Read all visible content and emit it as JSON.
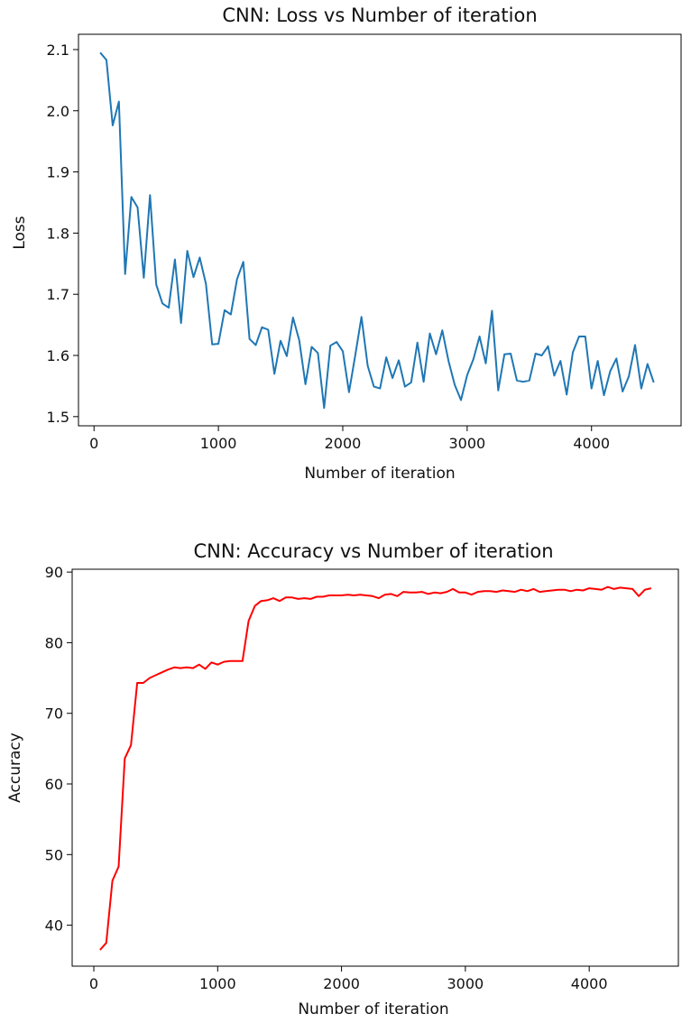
{
  "chart_data": [
    {
      "type": "line",
      "title": "CNN: Loss vs Number of iteration",
      "xlabel": "Number of iteration",
      "ylabel": "Loss",
      "xlim": [
        -125,
        4720
      ],
      "ylim": [
        1.485,
        2.125
      ],
      "xticks": [
        0,
        1000,
        2000,
        3000,
        4000
      ],
      "xtick_labels": [
        "0",
        "1000",
        "2000",
        "3000",
        "4000"
      ],
      "yticks": [
        1.5,
        1.6,
        1.7,
        1.8,
        1.9,
        2.0,
        2.1
      ],
      "ytick_labels": [
        "1.5",
        "1.6",
        "1.7",
        "1.8",
        "1.9",
        "2.0",
        "2.1"
      ],
      "grid": false,
      "line_color": "#1f77b4",
      "x": [
        50,
        100,
        150,
        200,
        250,
        300,
        350,
        400,
        450,
        500,
        550,
        600,
        650,
        700,
        750,
        800,
        850,
        900,
        950,
        1000,
        1050,
        1100,
        1150,
        1200,
        1250,
        1300,
        1350,
        1400,
        1450,
        1500,
        1550,
        1600,
        1650,
        1700,
        1750,
        1800,
        1850,
        1900,
        1950,
        2000,
        2050,
        2100,
        2150,
        2200,
        2250,
        2300,
        2350,
        2400,
        2450,
        2500,
        2550,
        2600,
        2650,
        2700,
        2750,
        2800,
        2850,
        2900,
        2950,
        3000,
        3050,
        3100,
        3150,
        3200,
        3250,
        3300,
        3350,
        3400,
        3450,
        3500,
        3550,
        3600,
        3650,
        3700,
        3750,
        3800,
        3850,
        3900,
        3950,
        4000,
        4050,
        4100,
        4150,
        4200,
        4250,
        4300,
        4350,
        4400,
        4450,
        4500
      ],
      "values": [
        2.095,
        2.083,
        1.976,
        2.015,
        1.733,
        1.859,
        1.842,
        1.727,
        1.862,
        1.716,
        1.685,
        1.678,
        1.757,
        1.653,
        1.771,
        1.728,
        1.76,
        1.717,
        1.618,
        1.619,
        1.674,
        1.667,
        1.725,
        1.753,
        1.627,
        1.617,
        1.646,
        1.642,
        1.57,
        1.624,
        1.599,
        1.662,
        1.625,
        1.553,
        1.614,
        1.604,
        1.514,
        1.616,
        1.622,
        1.607,
        1.54,
        1.6,
        1.663,
        1.583,
        1.549,
        1.546,
        1.597,
        1.563,
        1.592,
        1.549,
        1.556,
        1.621,
        1.557,
        1.636,
        1.602,
        1.641,
        1.591,
        1.552,
        1.527,
        1.568,
        1.594,
        1.631,
        1.587,
        1.673,
        1.543,
        1.602,
        1.603,
        1.559,
        1.557,
        1.559,
        1.603,
        1.6,
        1.615,
        1.567,
        1.591,
        1.536,
        1.605,
        1.631,
        1.631,
        1.546,
        1.591,
        1.535,
        1.574,
        1.595,
        1.541,
        1.566,
        1.617,
        1.546,
        1.586,
        1.556
      ]
    },
    {
      "type": "line",
      "title": "CNN: Accuracy vs Number of iteration",
      "xlabel": "Number of iteration",
      "ylabel": "Accuracy",
      "xlim": [
        -175,
        4720
      ],
      "ylim": [
        34.2,
        90.4
      ],
      "xticks": [
        0,
        1000,
        2000,
        3000,
        4000
      ],
      "xtick_labels": [
        "0",
        "1000",
        "2000",
        "3000",
        "4000"
      ],
      "yticks": [
        40,
        50,
        60,
        70,
        80,
        90
      ],
      "ytick_labels": [
        "40",
        "50",
        "60",
        "70",
        "80",
        "90"
      ],
      "grid": false,
      "line_color": "#ff0000",
      "x": [
        50,
        100,
        150,
        200,
        250,
        300,
        350,
        400,
        450,
        500,
        550,
        600,
        650,
        700,
        750,
        800,
        850,
        900,
        950,
        1000,
        1050,
        1100,
        1150,
        1200,
        1250,
        1300,
        1350,
        1400,
        1450,
        1500,
        1550,
        1600,
        1650,
        1700,
        1750,
        1800,
        1850,
        1900,
        1950,
        2000,
        2050,
        2100,
        2150,
        2200,
        2250,
        2300,
        2350,
        2400,
        2450,
        2500,
        2550,
        2600,
        2650,
        2700,
        2750,
        2800,
        2850,
        2900,
        2950,
        3000,
        3050,
        3100,
        3150,
        3200,
        3250,
        3300,
        3350,
        3400,
        3450,
        3500,
        3550,
        3600,
        3650,
        3700,
        3750,
        3800,
        3850,
        3900,
        3950,
        4000,
        4050,
        4100,
        4150,
        4200,
        4250,
        4300,
        4350,
        4400,
        4450,
        4500
      ],
      "values": [
        36.5,
        37.5,
        46.3,
        48.3,
        63.6,
        65.5,
        74.3,
        74.3,
        75,
        75.4,
        75.8,
        76.2,
        76.5,
        76.4,
        76.5,
        76.4,
        76.9,
        76.3,
        77.2,
        76.9,
        77.3,
        77.4,
        77.4,
        77.4,
        83.1,
        85.2,
        85.9,
        86,
        86.3,
        85.9,
        86.4,
        86.4,
        86.2,
        86.3,
        86.2,
        86.5,
        86.5,
        86.7,
        86.7,
        86.7,
        86.8,
        86.7,
        86.8,
        86.7,
        86.6,
        86.3,
        86.8,
        86.9,
        86.6,
        87.2,
        87.1,
        87.1,
        87.2,
        86.9,
        87.1,
        87,
        87.2,
        87.6,
        87.1,
        87.1,
        86.8,
        87.2,
        87.3,
        87.3,
        87.2,
        87.4,
        87.3,
        87.2,
        87.5,
        87.3,
        87.6,
        87.2,
        87.3,
        87.4,
        87.5,
        87.5,
        87.3,
        87.5,
        87.4,
        87.7,
        87.6,
        87.5,
        87.9,
        87.6,
        87.8,
        87.7,
        87.6,
        86.6,
        87.5,
        87.7
      ]
    }
  ]
}
